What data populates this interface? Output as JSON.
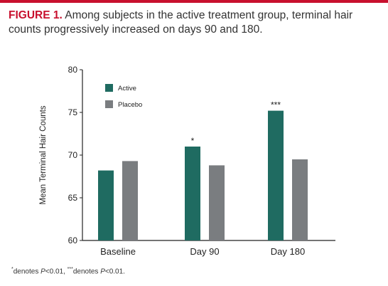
{
  "caption": {
    "figure_label": "FIGURE 1.",
    "text": " Among subjects in the active treatment group, terminal hair counts progressively increased on days 90 and 180."
  },
  "chart_data": {
    "type": "bar",
    "categories": [
      "Baseline",
      "Day 90",
      "Day 180"
    ],
    "series": [
      {
        "name": "Active",
        "values": [
          68.2,
          71.0,
          75.2
        ],
        "color": "#1f6b61"
      },
      {
        "name": "Placebo",
        "values": [
          69.3,
          68.8,
          69.5
        ],
        "color": "#7a7d80"
      }
    ],
    "annotations": [
      "",
      "*",
      "***"
    ],
    "ylabel": "Mean Terminal Hair Counts",
    "xlabel": "",
    "ylim": [
      60,
      80
    ],
    "yticks": [
      60,
      65,
      70,
      75,
      80
    ],
    "legend_position": "top-left",
    "grid": false
  },
  "footnote": {
    "part1_mark": "*",
    "part1_text": "denotes ",
    "part1_p": "P",
    "part1_val": "<0.01, ",
    "part2_mark": "***",
    "part2_text": "denotes ",
    "part2_p": "P",
    "part2_val": "<0.01."
  }
}
